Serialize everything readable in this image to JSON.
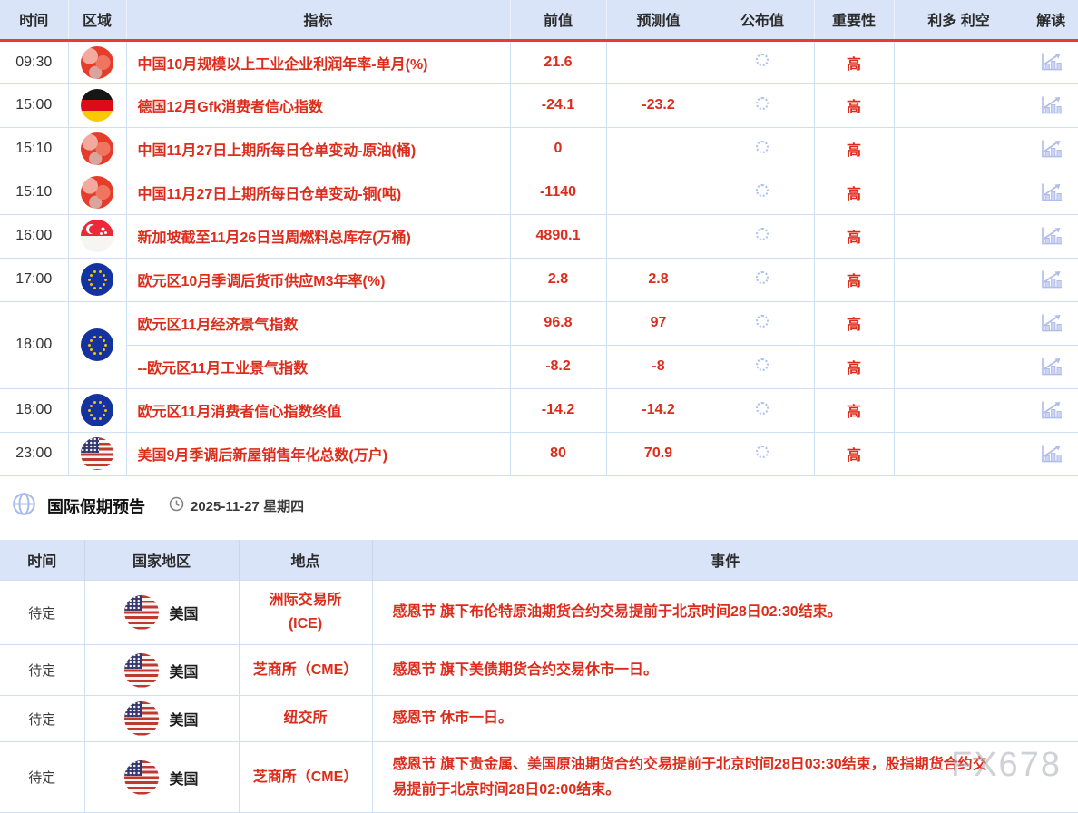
{
  "colors": {
    "accent_red": "#dd2c1b",
    "header_bg": "#d9e4f9",
    "header_underline": "#ec3b2c",
    "cell_border": "#cfe0f5",
    "icon_blue": "#b0bdea"
  },
  "calendar": {
    "headers": [
      "时间",
      "区域",
      "指标",
      "前值",
      "预测值",
      "公布值",
      "重要性",
      "利多 利空",
      "解读"
    ],
    "rows": [
      {
        "time": "09:30",
        "flag": "china",
        "indicator": "中国10月规模以上工业企业利润年率-单月(%)",
        "previous": "21.6",
        "forecast": "",
        "published_status": "loading",
        "importance": "高",
        "bull_bear": "",
        "rowspan": 1
      },
      {
        "time": "15:00",
        "flag": "germany",
        "indicator": "德国12月Gfk消费者信心指数",
        "previous": "-24.1",
        "forecast": "-23.2",
        "published_status": "loading",
        "importance": "高",
        "bull_bear": "",
        "rowspan": 1
      },
      {
        "time": "15:10",
        "flag": "china",
        "indicator": "中国11月27日上期所每日仓单变动-原油(桶)",
        "previous": "0",
        "forecast": "",
        "published_status": "loading",
        "importance": "高",
        "bull_bear": "",
        "rowspan": 1
      },
      {
        "time": "15:10",
        "flag": "china",
        "indicator": "中国11月27日上期所每日仓单变动-铜(吨)",
        "previous": "-1140",
        "forecast": "",
        "published_status": "loading",
        "importance": "高",
        "bull_bear": "",
        "rowspan": 1
      },
      {
        "time": "16:00",
        "flag": "singapore",
        "indicator": "新加坡截至11月26日当周燃料总库存(万桶)",
        "previous": "4890.1",
        "forecast": "",
        "published_status": "loading",
        "importance": "高",
        "bull_bear": "",
        "rowspan": 1
      },
      {
        "time": "17:00",
        "flag": "eu",
        "indicator": "欧元区10月季调后货币供应M3年率(%)",
        "previous": "2.8",
        "forecast": "2.8",
        "published_status": "loading",
        "importance": "高",
        "bull_bear": "",
        "rowspan": 1
      },
      {
        "time": "18:00",
        "flag": "eu",
        "indicator": "欧元区11月经济景气指数",
        "previous": "96.8",
        "forecast": "97",
        "published_status": "loading",
        "importance": "高",
        "bull_bear": "",
        "rowspan": 2
      },
      {
        "merged": true,
        "indicator": "--欧元区11月工业景气指数",
        "previous": "-8.2",
        "forecast": "-8",
        "published_status": "loading",
        "importance": "高",
        "bull_bear": ""
      },
      {
        "time": "18:00",
        "flag": "eu",
        "indicator": "欧元区11月消费者信心指数终值",
        "previous": "-14.2",
        "forecast": "-14.2",
        "published_status": "loading",
        "importance": "高",
        "bull_bear": "",
        "rowspan": 1
      },
      {
        "time": "23:00",
        "flag": "us",
        "indicator": "美国9月季调后新屋销售年化总数(万户)",
        "previous": "80",
        "forecast": "70.9",
        "published_status": "loading",
        "importance": "高",
        "bull_bear": "",
        "rowspan": 1
      }
    ]
  },
  "holiday": {
    "title": "国际假期预告",
    "date": "2025-11-27 星期四",
    "headers": [
      "时间",
      "国家地区",
      "地点",
      "事件"
    ],
    "rows": [
      {
        "time": "待定",
        "flag": "us",
        "country": "美国",
        "venue": "洲际交易所\n(ICE)",
        "event": "感恩节 旗下布伦特原油期货合约交易提前于北京时间28日02:30结束。"
      },
      {
        "time": "待定",
        "flag": "us",
        "country": "美国",
        "venue": "芝商所（CME）",
        "event": "感恩节 旗下美债期货合约交易休市一日。"
      },
      {
        "time": "待定",
        "flag": "us",
        "country": "美国",
        "venue": "纽交所",
        "event": "感恩节 休市一日。"
      },
      {
        "time": "待定",
        "flag": "us",
        "country": "美国",
        "venue": "芝商所（CME）",
        "event": "感恩节 旗下贵金属、美国原油期货合约交易提前于北京时间28日03:30结束，股指期货合约交易提前于北京时间28日02:00结束。"
      }
    ]
  },
  "watermark": "FX678"
}
